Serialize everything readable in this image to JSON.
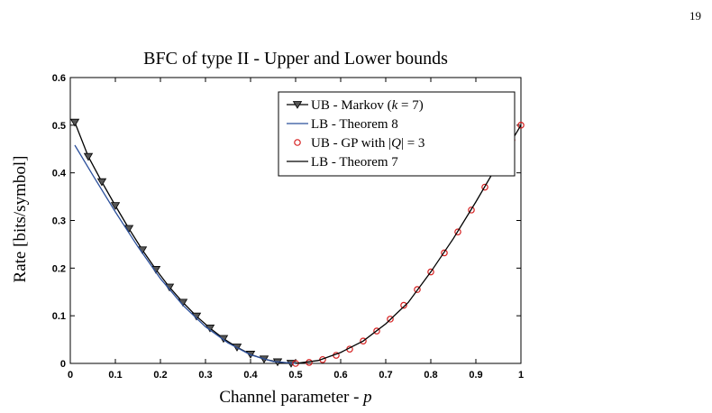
{
  "page": {
    "number": "19"
  },
  "chart_data": {
    "type": "line",
    "title": "BFC of type II - Upper and Lower bounds",
    "xlabel": "Channel parameter - ",
    "xlabel_var": "p",
    "ylabel": "Rate [bits/symbol]",
    "xlim": [
      0,
      1
    ],
    "ylim": [
      0,
      0.6
    ],
    "xticks": [
      0,
      0.1,
      0.2,
      0.3,
      0.4,
      0.5,
      0.6,
      0.7,
      0.8,
      0.9,
      1
    ],
    "xtick_labels": [
      "0",
      "0.1",
      "0.2",
      "0.3",
      "0.4",
      "0.5",
      "0.6",
      "0.7",
      "0.8",
      "0.9",
      "1"
    ],
    "yticks": [
      0,
      0.1,
      0.2,
      0.3,
      0.4,
      0.5,
      0.6
    ],
    "ytick_labels": [
      "0",
      "0.1",
      "0.2",
      "0.3",
      "0.4",
      "0.5",
      "0.6"
    ],
    "grid": false,
    "legend_position": "top-right",
    "series": [
      {
        "name": "UB - Markov (k = 7)",
        "legend": {
          "pre": "UB - Markov (",
          "var": "k",
          "post": " = 7)"
        },
        "color": "#000000",
        "marker": "triangle-down",
        "line": true,
        "x": [
          0.01,
          0.04,
          0.07,
          0.1,
          0.13,
          0.16,
          0.19,
          0.22,
          0.25,
          0.28,
          0.31,
          0.34,
          0.37,
          0.4,
          0.43,
          0.46,
          0.49
        ],
        "y": [
          0.506,
          0.434,
          0.381,
          0.331,
          0.283,
          0.238,
          0.197,
          0.16,
          0.128,
          0.099,
          0.074,
          0.052,
          0.034,
          0.019,
          0.009,
          0.003,
          0.0
        ]
      },
      {
        "name": "LB - Theorem 8",
        "legend": {
          "pre": "LB - Theorem 8",
          "var": "",
          "post": ""
        },
        "color": "#2b4f9b",
        "marker": "none",
        "line": true,
        "x": [
          0.01,
          0.05,
          0.1,
          0.15,
          0.2,
          0.25,
          0.3,
          0.35,
          0.4,
          0.45,
          0.5
        ],
        "y": [
          0.458,
          0.395,
          0.318,
          0.245,
          0.178,
          0.122,
          0.077,
          0.043,
          0.018,
          0.004,
          0.0
        ]
      },
      {
        "name": "UB - GP with |Q| = 3",
        "legend": {
          "pre": "UB - GP with |",
          "var": "Q",
          "post": "| = 3"
        },
        "color": "#d62020",
        "marker": "circle",
        "line": false,
        "x": [
          0.5,
          0.53,
          0.56,
          0.59,
          0.62,
          0.65,
          0.68,
          0.71,
          0.74,
          0.77,
          0.8,
          0.83,
          0.86,
          0.89,
          0.92,
          0.95,
          0.98,
          1.0
        ],
        "y": [
          0.0,
          0.002,
          0.008,
          0.017,
          0.03,
          0.047,
          0.068,
          0.093,
          0.122,
          0.155,
          0.192,
          0.232,
          0.276,
          0.322,
          0.37,
          0.42,
          0.469,
          0.5
        ]
      },
      {
        "name": "LB - Theorem 7",
        "legend": {
          "pre": "LB - Theorem 7",
          "var": "",
          "post": ""
        },
        "color": "#000000",
        "marker": "none",
        "line": true,
        "x": [
          0.5,
          0.55,
          0.6,
          0.65,
          0.7,
          0.75,
          0.8,
          0.85,
          0.9,
          0.95,
          1.0
        ],
        "y": [
          0.0,
          0.006,
          0.023,
          0.047,
          0.083,
          0.128,
          0.192,
          0.262,
          0.339,
          0.42,
          0.5
        ]
      }
    ]
  }
}
